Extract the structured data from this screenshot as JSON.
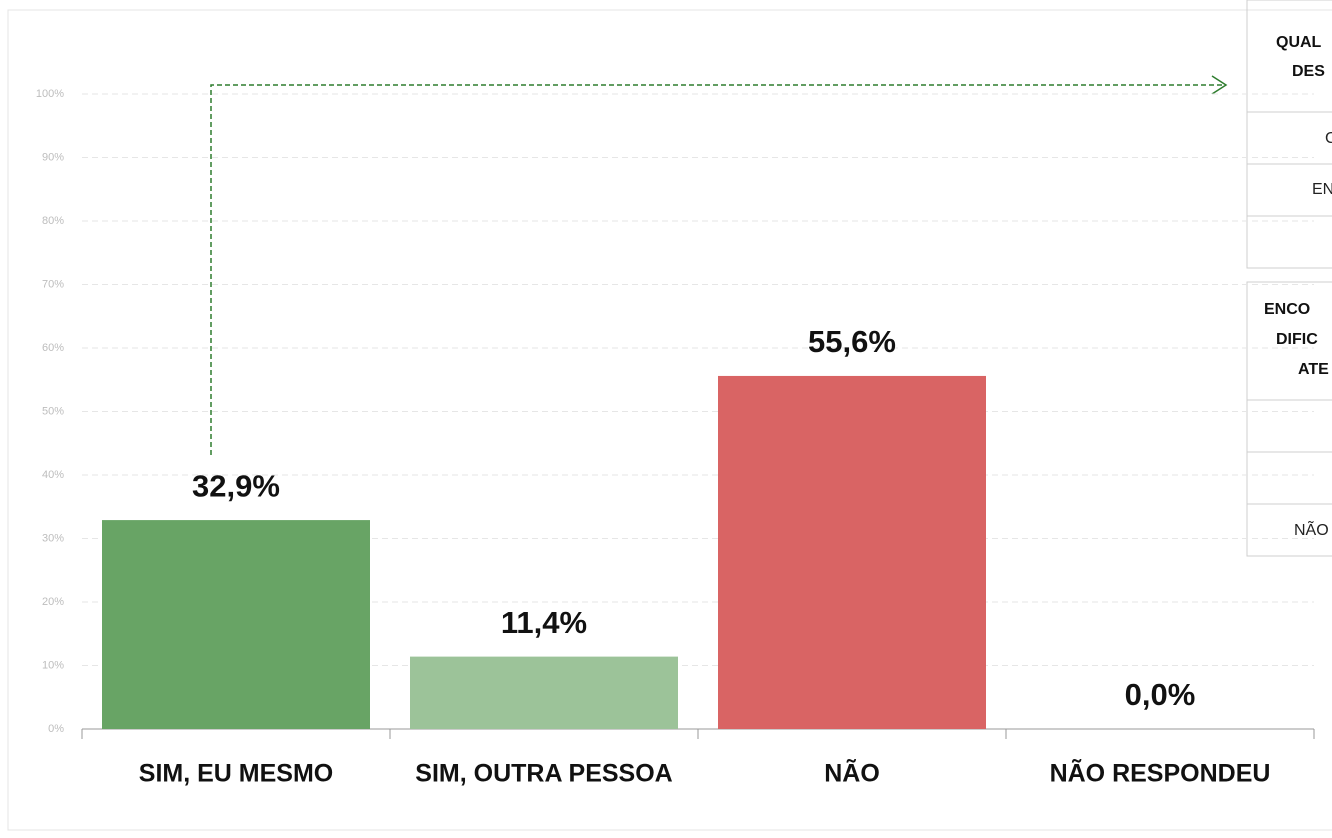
{
  "chart_data": {
    "type": "bar",
    "categories": [
      "SIM, EU MESMO",
      "SIM, OUTRA PESSOA",
      "NÃO",
      "NÃO RESPONDEU"
    ],
    "values": [
      32.9,
      11.4,
      55.6,
      0.0
    ],
    "value_labels": [
      "32,9%",
      "11,4%",
      "55,6%",
      "0,0%"
    ],
    "colors": [
      "#68a465",
      "#9cc399",
      "#d96464",
      "#d96464"
    ],
    "ylim": [
      0,
      100
    ],
    "yticks": [
      {
        "value": 0,
        "label": "0%"
      },
      {
        "value": 10,
        "label": "10%"
      },
      {
        "value": 20,
        "label": "20%"
      },
      {
        "value": 30,
        "label": "30%"
      },
      {
        "value": 40,
        "label": "40%"
      },
      {
        "value": 50,
        "label": "50%"
      },
      {
        "value": 60,
        "label": "60%"
      },
      {
        "value": 70,
        "label": "70%"
      },
      {
        "value": 80,
        "label": "80%"
      },
      {
        "value": 90,
        "label": "90%"
      },
      {
        "value": 100,
        "label": "100%"
      }
    ],
    "grid": true
  },
  "tables": [
    {
      "header_lines": [
        "QUAL",
        "DES"
      ],
      "rows": [
        "C",
        "EN"
      ]
    },
    {
      "header_lines": [
        "ENCO",
        "DIFIC",
        "ATE"
      ],
      "rows": [
        "NÃO"
      ]
    }
  ]
}
